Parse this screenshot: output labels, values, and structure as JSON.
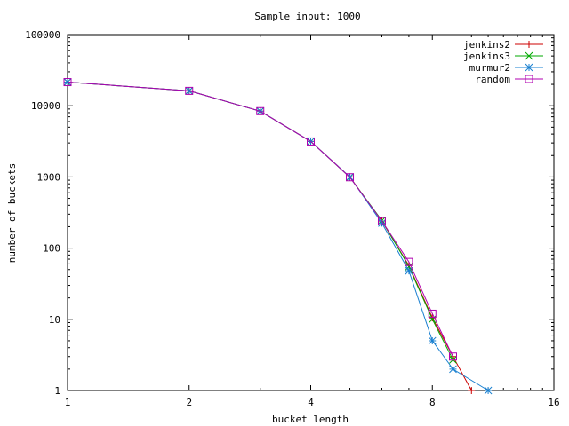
{
  "chart_data": {
    "type": "line",
    "title": "Sample input: 1000",
    "xlabel": "bucket length",
    "ylabel": "number of buckets",
    "x_scale": "log2",
    "y_scale": "log10",
    "xlim": [
      1,
      16
    ],
    "ylim": [
      1,
      100000
    ],
    "x_ticks": [
      {
        "value": 1,
        "label": "1"
      },
      {
        "value": 2,
        "label": "2"
      },
      {
        "value": 4,
        "label": "4"
      },
      {
        "value": 8,
        "label": "8"
      },
      {
        "value": 16,
        "label": "16"
      }
    ],
    "y_ticks": [
      {
        "value": 1,
        "label": "1"
      },
      {
        "value": 10,
        "label": "10"
      },
      {
        "value": 100,
        "label": "100"
      },
      {
        "value": 1000,
        "label": "1000"
      },
      {
        "value": 10000,
        "label": "10000"
      },
      {
        "value": 100000,
        "label": "100000"
      }
    ],
    "grid": false,
    "legend_position": "top-right",
    "series": [
      {
        "name": "jenkins2",
        "color": "#cc0000",
        "marker": "plus",
        "points": [
          [
            1,
            21500
          ],
          [
            2,
            16200
          ],
          [
            3,
            8400
          ],
          [
            4,
            3150
          ],
          [
            5,
            1000
          ],
          [
            6,
            240
          ],
          [
            7,
            57
          ],
          [
            8,
            10.5
          ],
          [
            9,
            3
          ],
          [
            10,
            1
          ]
        ]
      },
      {
        "name": "jenkins3",
        "color": "#00aa00",
        "marker": "cross",
        "points": [
          [
            1,
            21500
          ],
          [
            2,
            16200
          ],
          [
            3,
            8400
          ],
          [
            4,
            3150
          ],
          [
            5,
            990
          ],
          [
            6,
            245
          ],
          [
            7,
            55
          ],
          [
            8,
            10
          ],
          [
            9,
            2.7
          ]
        ]
      },
      {
        "name": "murmur2",
        "color": "#1a80d0",
        "marker": "star",
        "points": [
          [
            1,
            21500
          ],
          [
            2,
            16200
          ],
          [
            3,
            8400
          ],
          [
            4,
            3150
          ],
          [
            5,
            1000
          ],
          [
            6,
            225
          ],
          [
            7,
            48
          ],
          [
            8,
            5
          ],
          [
            9,
            2
          ],
          [
            11,
            1
          ]
        ]
      },
      {
        "name": "random",
        "color": "#b000b0",
        "marker": "square",
        "points": [
          [
            1,
            21500
          ],
          [
            2,
            16200
          ],
          [
            3,
            8400
          ],
          [
            4,
            3150
          ],
          [
            5,
            990
          ],
          [
            6,
            240
          ],
          [
            7,
            64
          ],
          [
            8,
            12
          ],
          [
            9,
            3
          ]
        ]
      }
    ]
  }
}
